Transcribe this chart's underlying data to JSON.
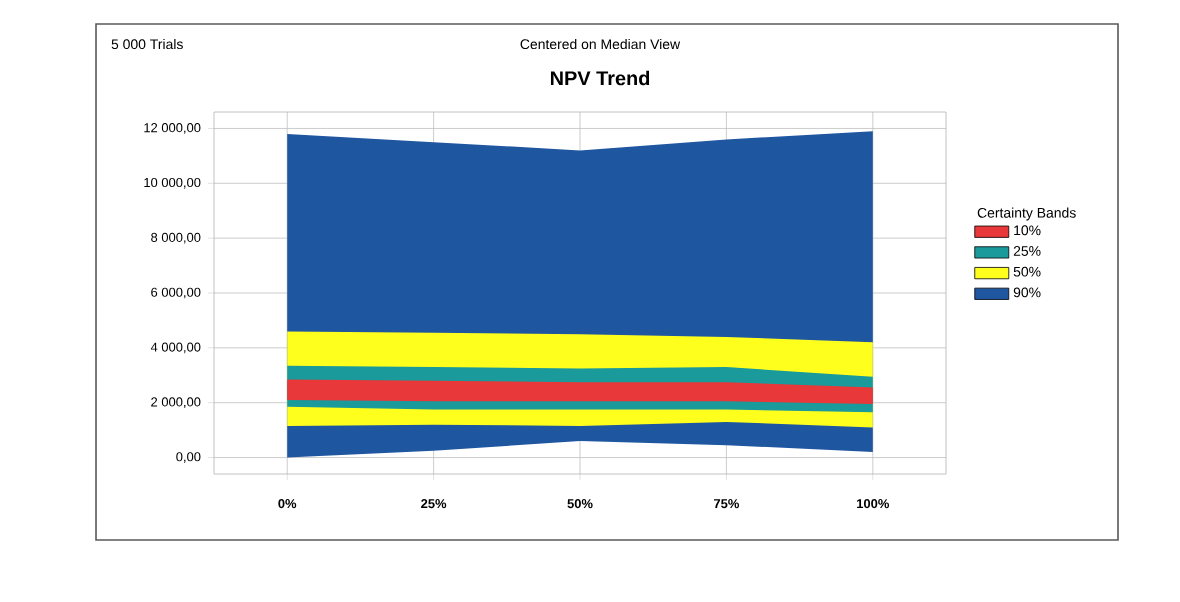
{
  "chart_data": {
    "type": "area",
    "title": "NPV Trend",
    "subtitle": "Centered on Median View",
    "annotations": [
      "5 000 Trials"
    ],
    "categories": [
      "0%",
      "25%",
      "50%",
      "75%",
      "100%"
    ],
    "legend_title": "Certainty Bands",
    "legend": "right",
    "grid": true,
    "ylim": [
      -600,
      12600
    ],
    "yticks": [
      {
        "value": 0,
        "label": "0,00"
      },
      {
        "value": 2000,
        "label": "2 000,00"
      },
      {
        "value": 4000,
        "label": "4 000,00"
      },
      {
        "value": 6000,
        "label": "6 000,00"
      },
      {
        "value": 8000,
        "label": "8 000,00"
      },
      {
        "value": 10000,
        "label": "10 000,00"
      },
      {
        "value": 12000,
        "label": "12 000,00"
      }
    ],
    "series": [
      {
        "name": "90%",
        "color": "#1f56a0",
        "values": [
          null,
          null,
          null,
          null,
          null
        ],
        "upper": [
          11800,
          11500,
          11200,
          11600,
          11900
        ],
        "lower": [
          0,
          250,
          600,
          450,
          200
        ]
      },
      {
        "name": "50%",
        "color": "#ffff1e",
        "values": [
          null,
          null,
          null,
          null,
          null
        ],
        "upper": [
          4600,
          4550,
          4500,
          4400,
          4200
        ],
        "lower": [
          1150,
          1200,
          1150,
          1300,
          1100
        ]
      },
      {
        "name": "25%",
        "color": "#1a9a9a",
        "values": [
          null,
          null,
          null,
          null,
          null
        ],
        "upper": [
          3350,
          3300,
          3250,
          3300,
          2950
        ],
        "lower": [
          1850,
          1750,
          1750,
          1750,
          1650
        ]
      },
      {
        "name": "10%",
        "color": "#e8383a",
        "values": [
          null,
          null,
          null,
          null,
          null
        ],
        "upper": [
          2850,
          2800,
          2750,
          2750,
          2550
        ],
        "lower": [
          2100,
          2050,
          2050,
          2050,
          1950
        ]
      }
    ]
  }
}
